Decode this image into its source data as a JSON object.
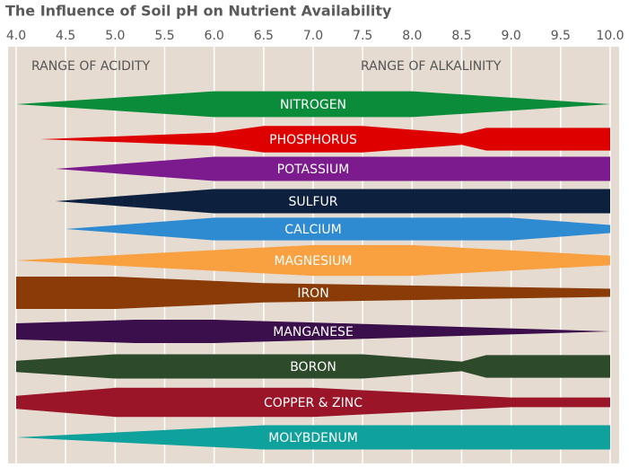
{
  "chart_data": {
    "type": "band",
    "title": "The Influence of Soil pH on Nutrient Availability",
    "xlim": [
      4.0,
      10.0
    ],
    "xticks": [
      {
        "value": 4.0,
        "label": "4.0"
      },
      4.5,
      {
        "value": 5.0,
        "label": "5.0"
      },
      5.5,
      {
        "value": 6.0,
        "label": "6.0"
      },
      6.5,
      {
        "value": 7.0,
        "label": "7.0"
      },
      7.5,
      {
        "value": 8.0,
        "label": "8.0"
      },
      8.5,
      {
        "value": 9.0,
        "label": "9.0"
      },
      9.5,
      {
        "value": 10.0,
        "label": "10.0"
      }
    ],
    "grid": true,
    "annotations": [
      "RANGE OF ACIDITY",
      "RANGE OF ALKALINITY"
    ],
    "series": [
      {
        "name": "NITROGEN",
        "color": "#0b8c3b",
        "x": [
          4.0,
          6.0,
          8.0,
          10.0
        ],
        "values": [
          0,
          0.8,
          0.8,
          0
        ]
      },
      {
        "name": "PHOSPHORUS",
        "color": "#de0000",
        "x": [
          4.25,
          6.0,
          6.5,
          7.5,
          8.5,
          8.75,
          10.0
        ],
        "values": [
          0,
          0.4,
          0.82,
          0.82,
          0.35,
          0.7,
          0.7
        ]
      },
      {
        "name": "POTASSIUM",
        "color": "#7c1b8e",
        "x": [
          4.4,
          6.0,
          10.0
        ],
        "values": [
          0,
          0.75,
          0.75
        ]
      },
      {
        "name": "SULFUR",
        "color": "#0d203d",
        "x": [
          4.4,
          6.0,
          10.0
        ],
        "values": [
          0,
          0.75,
          0.75
        ]
      },
      {
        "name": "CALCIUM",
        "color": "#2f8bd1",
        "x": [
          4.5,
          6.0,
          9.0,
          10.0
        ],
        "values": [
          0,
          0.7,
          0.7,
          0.25
        ]
      },
      {
        "name": "MAGNESIUM",
        "color": "#f9a041",
        "x": [
          4.0,
          6.5,
          7.0,
          8.0,
          10.0
        ],
        "values": [
          0,
          0.8,
          0.95,
          0.95,
          0.3
        ]
      },
      {
        "name": "IRON",
        "color": "#8a3b08",
        "x": [
          4.0,
          5.0,
          6.5,
          10.0
        ],
        "values": [
          1,
          1,
          0.6,
          0.25
        ]
      },
      {
        "name": "MANGANESE",
        "color": "#3b0f4b",
        "x": [
          4.0,
          5.2,
          6.0,
          7.0,
          10.0
        ],
        "values": [
          0.5,
          0.72,
          0.72,
          0.55,
          0
        ]
      },
      {
        "name": "BORON",
        "color": "#2d4a2b",
        "x": [
          4.0,
          5.0,
          7.5,
          8.5,
          8.75,
          10.0
        ],
        "values": [
          0.35,
          0.75,
          0.75,
          0.3,
          0.7,
          0.7
        ]
      },
      {
        "name": "COPPER & ZINC",
        "color": "#9b1529",
        "x": [
          4.0,
          5.0,
          7.0,
          9.0,
          10.0
        ],
        "values": [
          0.4,
          0.9,
          0.9,
          0.3,
          0.3
        ]
      },
      {
        "name": "MOLYBDENUM",
        "color": "#0fa19b",
        "x": [
          4.0,
          6.5,
          10.0
        ],
        "values": [
          0,
          0.75,
          0.75
        ]
      }
    ]
  }
}
